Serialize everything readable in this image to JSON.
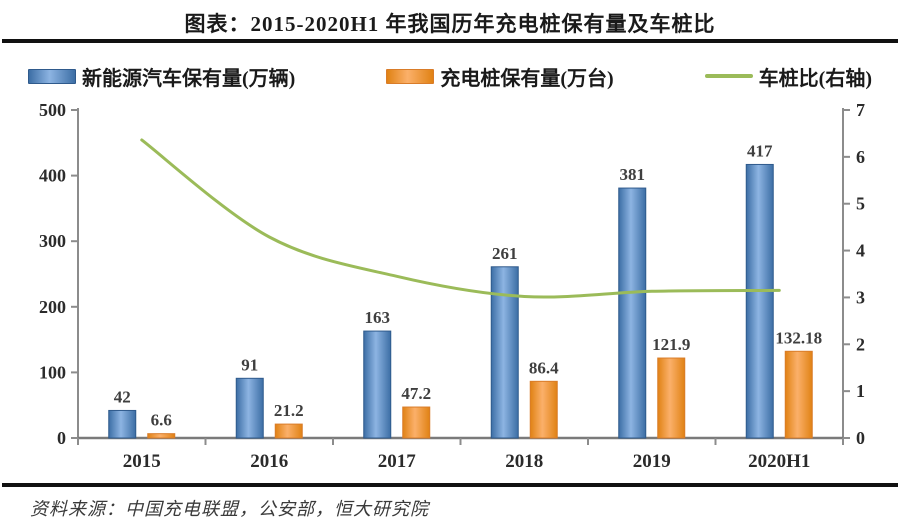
{
  "title": "图表：2015-2020H1 年我国历年充电桩保有量及车桩比",
  "source": "资料来源：中国充电联盟，公安部，恒大研究院",
  "colors": {
    "bar_blue": "#4f81bd",
    "bar_blue_light": "#8db4e2",
    "bar_blue_dark": "#3c6ea5",
    "bar_blue_border": "#2f5a8c",
    "bar_orange": "#f79646",
    "bar_orange_light": "#fbb06a",
    "bar_orange_dark": "#e08214",
    "bar_orange_border": "#d97c29",
    "line_green": "#9bbb59",
    "axis_gray": "#8c8c8c",
    "tick_text": "#2b2b2b",
    "value_text": "#3f3f3f"
  },
  "chart_data": {
    "type": "bar",
    "subtype": "grouped bars + smoothed line (secondary axis)",
    "categories": [
      "2015",
      "2016",
      "2017",
      "2018",
      "2019",
      "2020H1"
    ],
    "series": [
      {
        "name": "新能源汽车保有量(万辆)",
        "type": "bar",
        "axis": "left",
        "values": [
          42,
          91,
          163,
          261,
          381,
          417
        ],
        "labels": [
          "42",
          "91",
          "163",
          "261",
          "381",
          "417"
        ]
      },
      {
        "name": "充电桩保有量(万台)",
        "type": "bar",
        "axis": "left",
        "values": [
          6.6,
          21.2,
          47.2,
          86.4,
          121.9,
          132.18
        ],
        "labels": [
          "6.6",
          "21.2",
          "47.2",
          "86.4",
          "121.9",
          "132.18"
        ]
      },
      {
        "name": "车桩比(右轴)",
        "type": "line",
        "axis": "right",
        "values": [
          6.36,
          4.29,
          3.45,
          3.02,
          3.13,
          3.15
        ],
        "labels": []
      }
    ],
    "left_axis": {
      "min": 0,
      "max": 500,
      "step": 100,
      "ticks": [
        "0",
        "100",
        "200",
        "300",
        "400",
        "500"
      ]
    },
    "right_axis": {
      "min": 0,
      "max": 7,
      "step": 1,
      "ticks": [
        "0",
        "1",
        "2",
        "3",
        "4",
        "5",
        "6",
        "7"
      ]
    },
    "grid": false,
    "legend_position": "top"
  }
}
